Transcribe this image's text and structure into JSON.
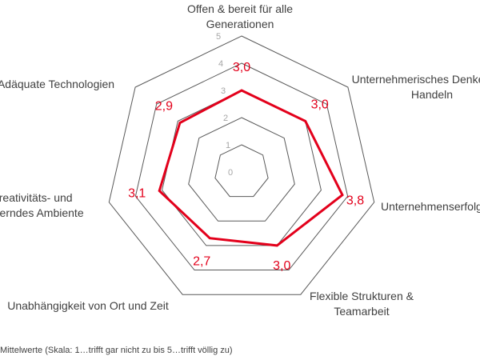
{
  "chart_data": {
    "type": "radar",
    "axes": [
      "Offen & bereit für alle Generationen",
      "Unternehmerisches Denken und Handeln",
      "Unternehmenserfolg",
      "Flexible Strukturen & Teamarbeit",
      "Unabhängigkeit von Ort und Zeit",
      "Kreativitäts- und förderndes Ambiente",
      "Adäquate Technologien"
    ],
    "axis_label_lines": [
      [
        "Offen & bereit für alle",
        "Generationen"
      ],
      [
        "Unternehmerisches Denken und",
        "Handeln"
      ],
      [
        "Unternehmenserfolg"
      ],
      [
        "Flexible Strukturen &",
        "Teamarbeit"
      ],
      [
        "Unabhängigkeit von Ort und Zeit"
      ],
      [
        "Kreativitäts- und",
        "förderndes Ambiente"
      ],
      [
        "Adäquate Technologien"
      ]
    ],
    "values": [
      3.0,
      3.0,
      3.8,
      3.0,
      2.7,
      3.1,
      2.9
    ],
    "value_labels": [
      "3,0",
      "3,0",
      "3,8",
      "3,0",
      "2,7",
      "3,1",
      "2,9"
    ],
    "rlim": [
      0,
      5
    ],
    "ticks": [
      0,
      1,
      2,
      3,
      4,
      5
    ],
    "grid": true,
    "series_color": "#e3001b",
    "grid_color": "#595959",
    "footnote": "Mittelwerte (Skala: 1…trifft gar nicht zu   bis 5…trifft völlig zu)"
  }
}
